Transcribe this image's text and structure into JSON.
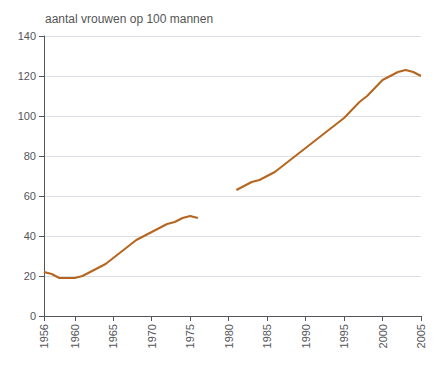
{
  "chart_data": {
    "type": "line",
    "annotation": "aantal vrouwen op 100 mannen",
    "x": [
      1956,
      1957,
      1958,
      1959,
      1960,
      1961,
      1962,
      1963,
      1964,
      1965,
      1966,
      1967,
      1968,
      1969,
      1970,
      1971,
      1972,
      1973,
      1974,
      1975,
      1976,
      1977,
      1978,
      1979,
      1980,
      1981,
      1982,
      1983,
      1984,
      1985,
      1986,
      1987,
      1988,
      1989,
      1990,
      1991,
      1992,
      1993,
      1994,
      1995,
      1996,
      1997,
      1998,
      1999,
      2000,
      2001,
      2002,
      2003,
      2004,
      2005
    ],
    "values": [
      22,
      21,
      19,
      19,
      19,
      20,
      22,
      24,
      26,
      29,
      32,
      35,
      38,
      40,
      42,
      44,
      46,
      47,
      49,
      50,
      49,
      null,
      null,
      null,
      null,
      63,
      65,
      67,
      68,
      70,
      72,
      75,
      78,
      81,
      84,
      87,
      90,
      93,
      96,
      99,
      103,
      107,
      110,
      114,
      118,
      120,
      122,
      123,
      122,
      120
    ],
    "color": "#b5651d",
    "xlim": [
      1956,
      2005
    ],
    "xticks": [
      1956,
      1960,
      1965,
      1970,
      1975,
      1980,
      1985,
      1990,
      1995,
      2000,
      2005
    ],
    "ylim": [
      0,
      140
    ],
    "yticks": [
      0,
      20,
      40,
      60,
      80,
      100,
      120,
      140
    ],
    "grid": true
  }
}
